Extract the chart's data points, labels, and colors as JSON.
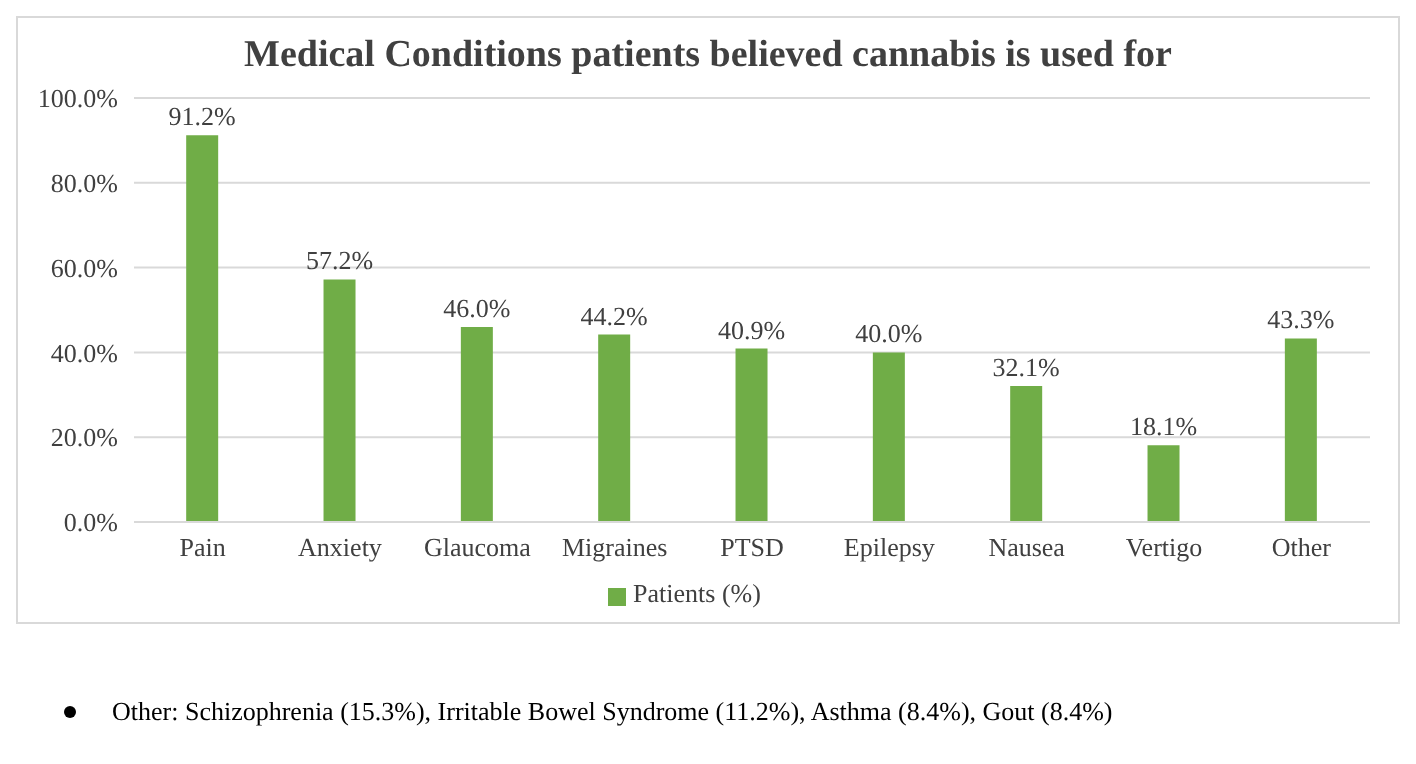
{
  "chart_data": {
    "type": "bar",
    "title": "Medical Conditions patients believed cannabis is used for",
    "categories": [
      "Pain",
      "Anxiety",
      "Glaucoma",
      "Migraines",
      "PTSD",
      "Epilepsy",
      "Nausea",
      "Vertigo",
      "Other"
    ],
    "series": [
      {
        "name": "Patients (%)",
        "color": "#70ad47",
        "values": [
          91.2,
          57.2,
          46.0,
          44.2,
          40.9,
          40.0,
          32.1,
          18.1,
          43.3
        ]
      }
    ],
    "value_labels": [
      "91.2%",
      "57.2%",
      "46.0%",
      "44.2%",
      "40.9%",
      "40.0%",
      "32.1%",
      "18.1%",
      "43.3%"
    ],
    "ylim": [
      0,
      100
    ],
    "yticks": [
      {
        "value": 0,
        "label": "0.0%"
      },
      {
        "value": 20,
        "label": "20.0%"
      },
      {
        "value": 40,
        "label": "40.0%"
      },
      {
        "value": 60,
        "label": "60.0%"
      },
      {
        "value": 80,
        "label": "80.0%"
      },
      {
        "value": 100,
        "label": "100.0%"
      }
    ],
    "grid": "y",
    "legend": "bottom",
    "annotations": [
      "Other: Schizophrenia (15.3%), Irritable Bowel Syndrome (11.2%), Asthma (8.4%), Gout (8.4%)"
    ]
  }
}
